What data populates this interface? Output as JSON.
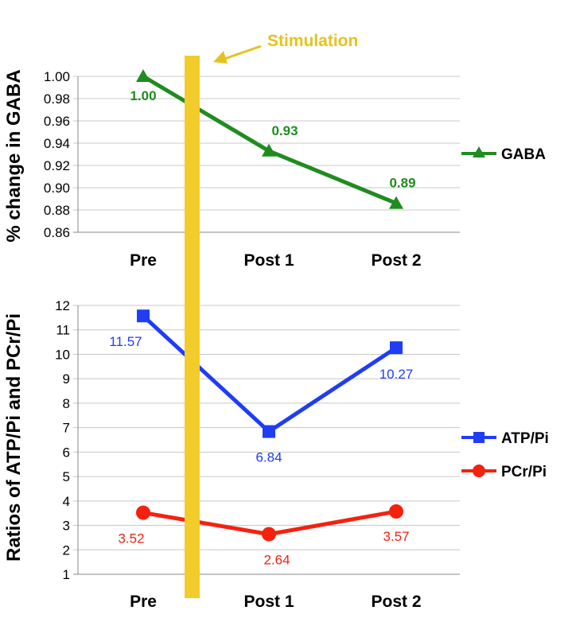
{
  "annotation": {
    "text": "Stimulation",
    "color": "#e6c21e",
    "band_color": "#f2cc2a",
    "position_category": "between Pre and Post 1"
  },
  "chart_data": [
    {
      "type": "line",
      "title": "",
      "xlabel": "",
      "ylabel": "% change in GABA",
      "categories": [
        "Pre",
        "Post 1",
        "Post 2"
      ],
      "ylim": [
        0.86,
        1.0
      ],
      "yticks": [
        "0.86",
        "0.88",
        "0.90",
        "0.92",
        "0.94",
        "0.96",
        "0.98",
        "1.00"
      ],
      "grid": true,
      "legend": "right",
      "series": [
        {
          "name": "GABA",
          "color": "#1f8c1f",
          "marker": "triangle",
          "values": [
            1.0,
            0.933,
            0.886
          ],
          "labels": [
            "1.00",
            "0.93",
            "0.89"
          ]
        }
      ]
    },
    {
      "type": "line",
      "title": "",
      "xlabel": "",
      "ylabel": "Ratios of ATP/Pi and PCr/Pi",
      "categories": [
        "Pre",
        "Post 1",
        "Post 2"
      ],
      "ylim": [
        1,
        12
      ],
      "yticks": [
        "1",
        "2",
        "3",
        "4",
        "5",
        "6",
        "7",
        "8",
        "9",
        "10",
        "11",
        "12"
      ],
      "grid": true,
      "legend": "right",
      "series": [
        {
          "name": "ATP/Pi",
          "color": "#1f3df5",
          "marker": "square",
          "values": [
            11.57,
            6.84,
            10.27
          ],
          "labels": [
            "11.57",
            "6.84",
            "10.27"
          ]
        },
        {
          "name": "PCr/Pi",
          "color": "#f5210f",
          "marker": "circle",
          "values": [
            3.52,
            2.64,
            3.57
          ],
          "labels": [
            "3.52",
            "2.64",
            "3.57"
          ]
        }
      ]
    }
  ]
}
